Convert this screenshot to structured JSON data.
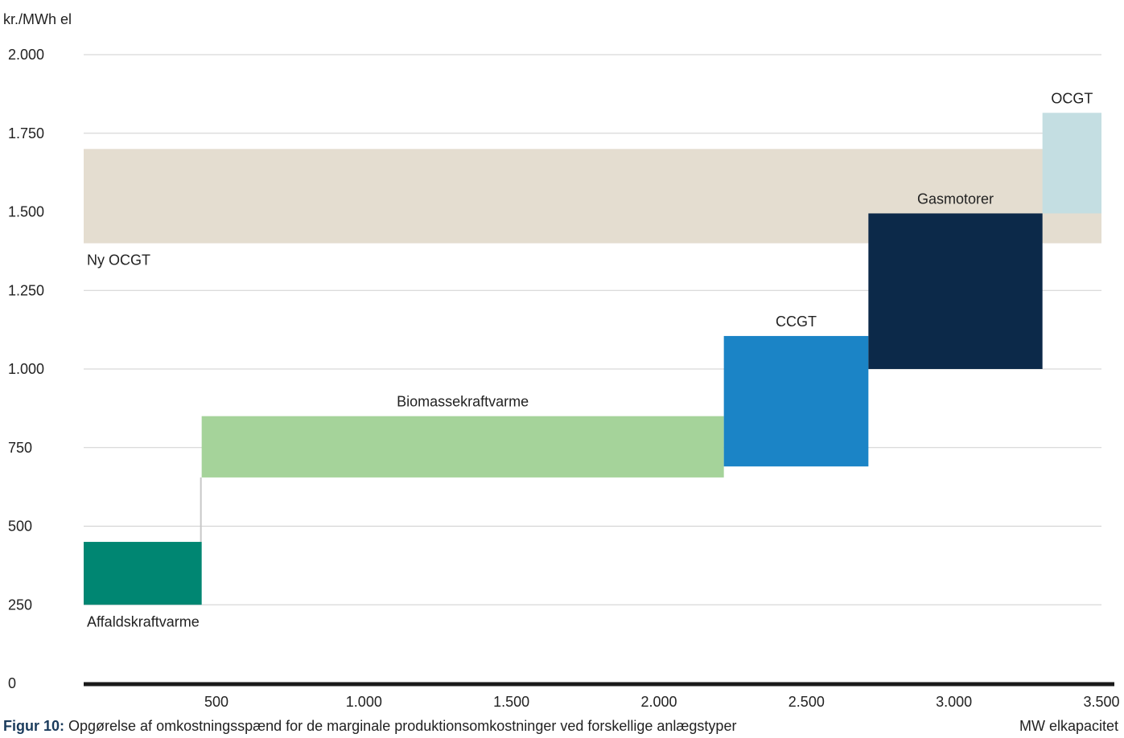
{
  "chart_data": {
    "type": "range-bar",
    "ylabel": "kr./MWh el",
    "xlabel": "MW elkapacitet",
    "ylim": [
      0,
      2000
    ],
    "xlim": [
      50,
      3500
    ],
    "y_ticks": [
      {
        "value": 0,
        "label": "0"
      },
      {
        "value": 250,
        "label": "250"
      },
      {
        "value": 500,
        "label": "500"
      },
      {
        "value": 750,
        "label": "750"
      },
      {
        "value": 1000,
        "label": "1.000"
      },
      {
        "value": 1250,
        "label": "1.250"
      },
      {
        "value": 1500,
        "label": "1.500"
      },
      {
        "value": 1750,
        "label": "1.750"
      },
      {
        "value": 2000,
        "label": "2.000"
      }
    ],
    "x_ticks": [
      {
        "value": 500,
        "label": "500"
      },
      {
        "value": 1000,
        "label": "1.000"
      },
      {
        "value": 1500,
        "label": "1.500"
      },
      {
        "value": 2000,
        "label": "2.000"
      },
      {
        "value": 2500,
        "label": "2.500"
      },
      {
        "value": 3000,
        "label": "3.000"
      },
      {
        "value": 3500,
        "label": "3.500"
      }
    ],
    "grid": true,
    "series": [
      {
        "name": "Ny OCGT",
        "x_start": 50,
        "x_end": 3500,
        "y_low": 1400,
        "y_high": 1700,
        "color": "#e4ddd0",
        "label_pos": "below-left"
      },
      {
        "name": "Affaldskraftvarme",
        "x_start": 50,
        "x_end": 450,
        "y_low": 250,
        "y_high": 450,
        "color": "#008672",
        "label_pos": "below-left"
      },
      {
        "name": "Biomassekraftvarme",
        "x_start": 450,
        "x_end": 2220,
        "y_low": 655,
        "y_high": 850,
        "color": "#a5d39a",
        "label_pos": "above-center"
      },
      {
        "name": "CCGT",
        "x_start": 2220,
        "x_end": 2710,
        "y_low": 690,
        "y_high": 1105,
        "color": "#1b84c6",
        "label_pos": "above-center"
      },
      {
        "name": "Gasmotorer",
        "x_start": 2710,
        "x_end": 3300,
        "y_low": 1000,
        "y_high": 1495,
        "color": "#0c2949",
        "label_pos": "above-center"
      },
      {
        "name": "OCGT",
        "x_start": 3300,
        "x_end": 3520,
        "y_low": 1495,
        "y_high": 1815,
        "color": "#c4dee2",
        "label_pos": "above-center"
      }
    ],
    "caption_bold": "Figur 10:",
    "caption_text": " Opgørelse af omkostningsspænd for de marginale produktionsomkostninger ved forskellige anlægstyper"
  }
}
